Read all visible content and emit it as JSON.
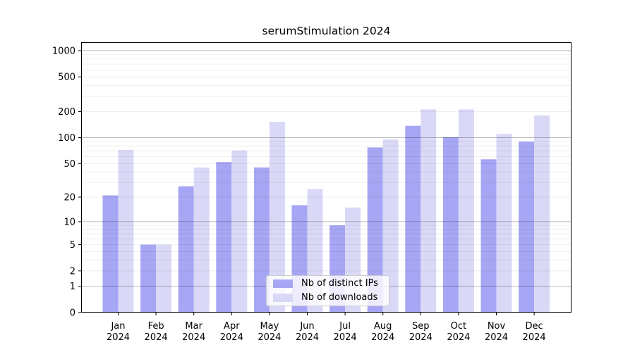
{
  "chart_data": {
    "type": "bar",
    "title": "serumStimulation 2024",
    "scale": "log1p",
    "grid": true,
    "legend_position": "lower center",
    "categories": [
      "Jan 2024",
      "Feb 2024",
      "Mar 2024",
      "Apr 2024",
      "May 2024",
      "Jun 2024",
      "Jul 2024",
      "Aug 2024",
      "Sep 2024",
      "Oct 2024",
      "Nov 2024",
      "Dec 2024"
    ],
    "series": [
      {
        "name": "Nb of distinct IPs",
        "color": "#a6a6f4",
        "values": [
          21,
          5,
          27,
          52,
          45,
          16,
          9,
          77,
          137,
          101,
          56,
          90
        ]
      },
      {
        "name": "Nb of downloads",
        "color": "#d9d9f7",
        "values": [
          72,
          5,
          45,
          71,
          152,
          25,
          15,
          95,
          212,
          212,
          110,
          180
        ]
      }
    ],
    "yticks": [
      1000,
      500,
      200,
      100,
      50,
      20,
      10,
      5,
      2,
      1,
      0
    ],
    "ylim": [
      0,
      1250
    ],
    "xlabel": "",
    "ylabel": "",
    "grid_major_values": [
      1,
      10,
      100,
      1000
    ],
    "axis_color": "#000000",
    "background_color": "#ffffff"
  }
}
